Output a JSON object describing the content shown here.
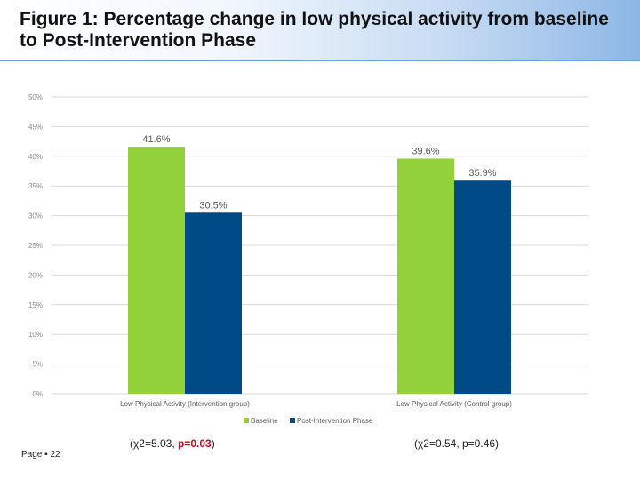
{
  "title": "Figure 1: Percentage change in low physical activity from baseline to Post-Intervention Phase",
  "footer": {
    "page_label": "Page ▪ 22"
  },
  "stats": [
    {
      "prefix": "(χ2=5.03, ",
      "pvalue": "p=0.03",
      "suffix": ")"
    },
    {
      "prefix": "(χ2=0.54, p=0.46)",
      "pvalue": "",
      "suffix": ""
    }
  ],
  "colors": {
    "baseline": "#92d13a",
    "post": "#004b87"
  },
  "chart_data": {
    "type": "bar",
    "categories": [
      "Low Physical Activity (Intervention group)",
      "Low Physical Activity (Control group)"
    ],
    "series": [
      {
        "name": "Baseline",
        "values": [
          41.6,
          39.6
        ],
        "labels": [
          "41.6%",
          "39.6%"
        ]
      },
      {
        "name": "Post-Intervention Phase",
        "values": [
          30.5,
          35.9
        ],
        "labels": [
          "30.5%",
          "35.9%"
        ]
      }
    ],
    "ylim": [
      0,
      50
    ],
    "yticks": [
      "0%",
      "5%",
      "10%",
      "15%",
      "20%",
      "25%",
      "30%",
      "35%",
      "40%",
      "45%",
      "50%"
    ],
    "grid": true,
    "legend": "bottom"
  }
}
